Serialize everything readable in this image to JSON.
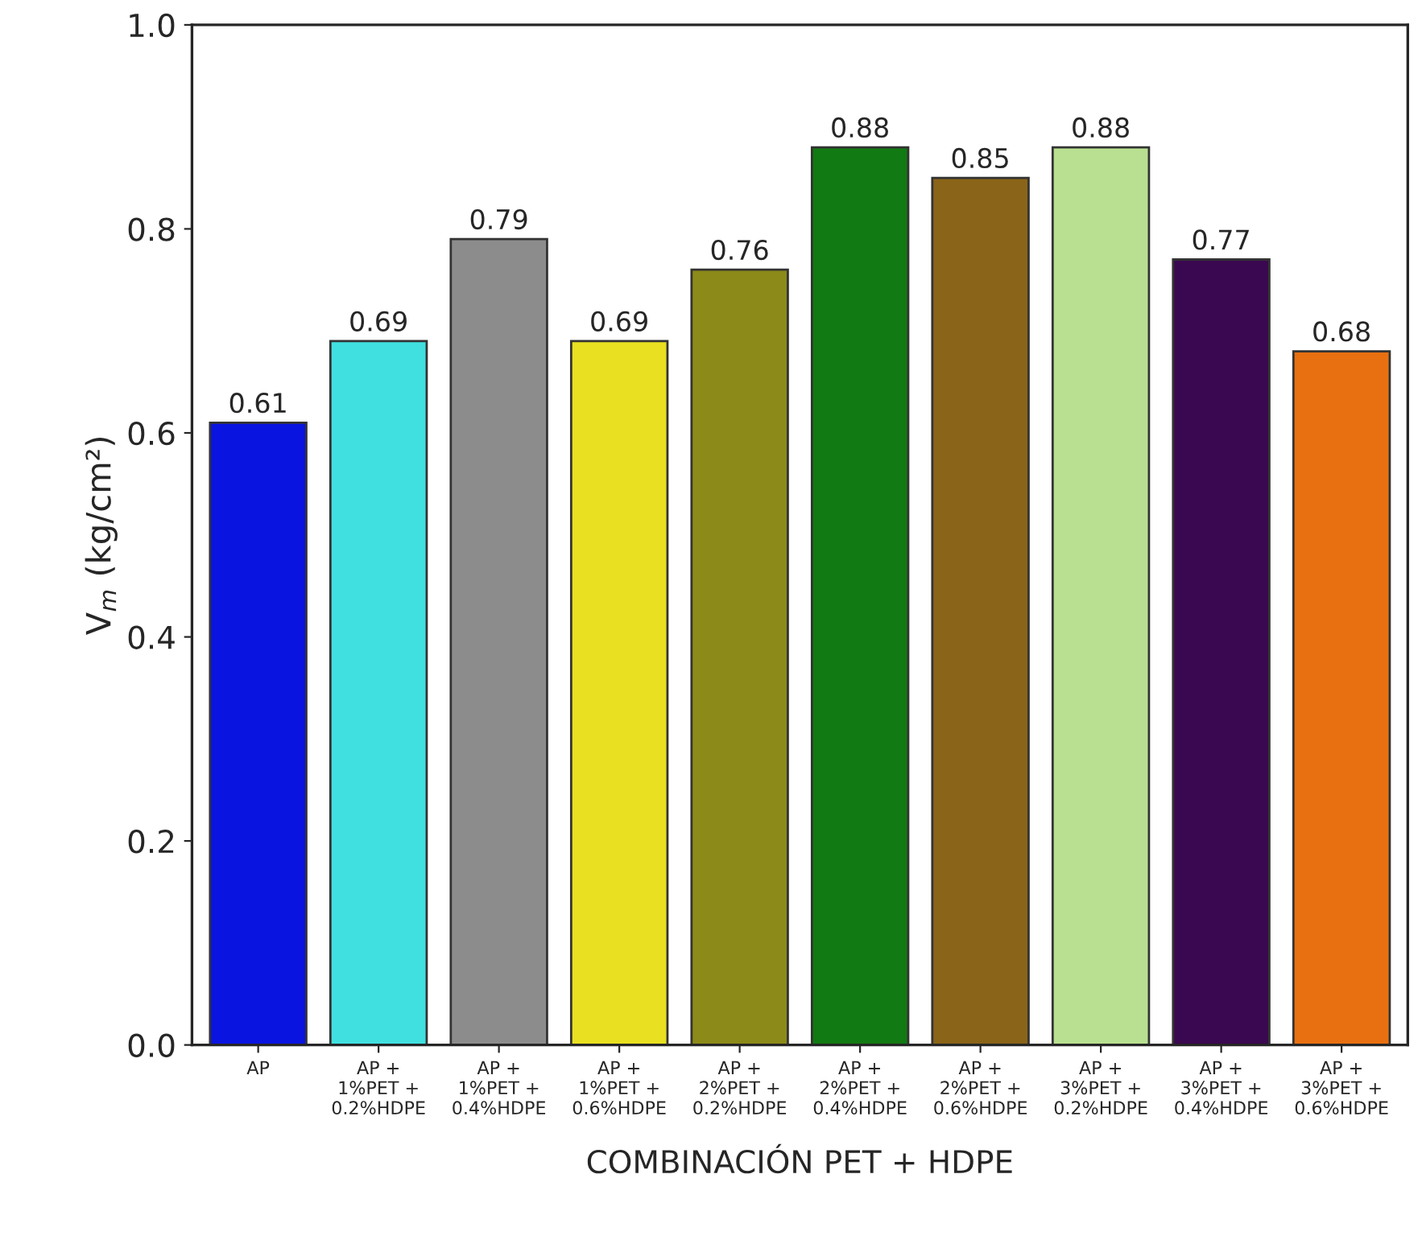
{
  "chart_data": {
    "type": "bar",
    "xlabel": "COMBINACIÓN PET + HDPE",
    "ylabel": "V$_{m}$ (kg/cm²)",
    "categories": [
      "AP",
      "AP +\n1%PET +\n0.2%HDPE",
      "AP +\n1%PET +\n0.4%HDPE",
      "AP +\n1%PET +\n0.6%HDPE",
      "AP +\n2%PET +\n0.2%HDPE",
      "AP +\n2%PET +\n0.4%HDPE",
      "AP +\n2%PET +\n0.6%HDPE",
      "AP +\n3%PET +\n0.2%HDPE",
      "AP +\n3%PET +\n0.4%HDPE",
      "AP +\n3%PET +\n0.6%HDPE"
    ],
    "values": [
      0.61,
      0.69,
      0.79,
      0.69,
      0.76,
      0.88,
      0.85,
      0.88,
      0.77,
      0.68
    ],
    "colors": [
      "#0a14e0",
      "#40e0e0",
      "#8c8c8c",
      "#e8e020",
      "#8c8a18",
      "#127a12",
      "#8a6418",
      "#b8e090",
      "#3a0850",
      "#e87010"
    ],
    "ylim": [
      0,
      1.0
    ],
    "yticks": [
      {
        "value": 0,
        "label": "0.0"
      },
      0.2,
      0.4,
      0.6,
      0.8,
      {
        "value": 1.0,
        "label": "1.0"
      }
    ],
    "data_labels": true,
    "grid": false,
    "legend": false
  }
}
